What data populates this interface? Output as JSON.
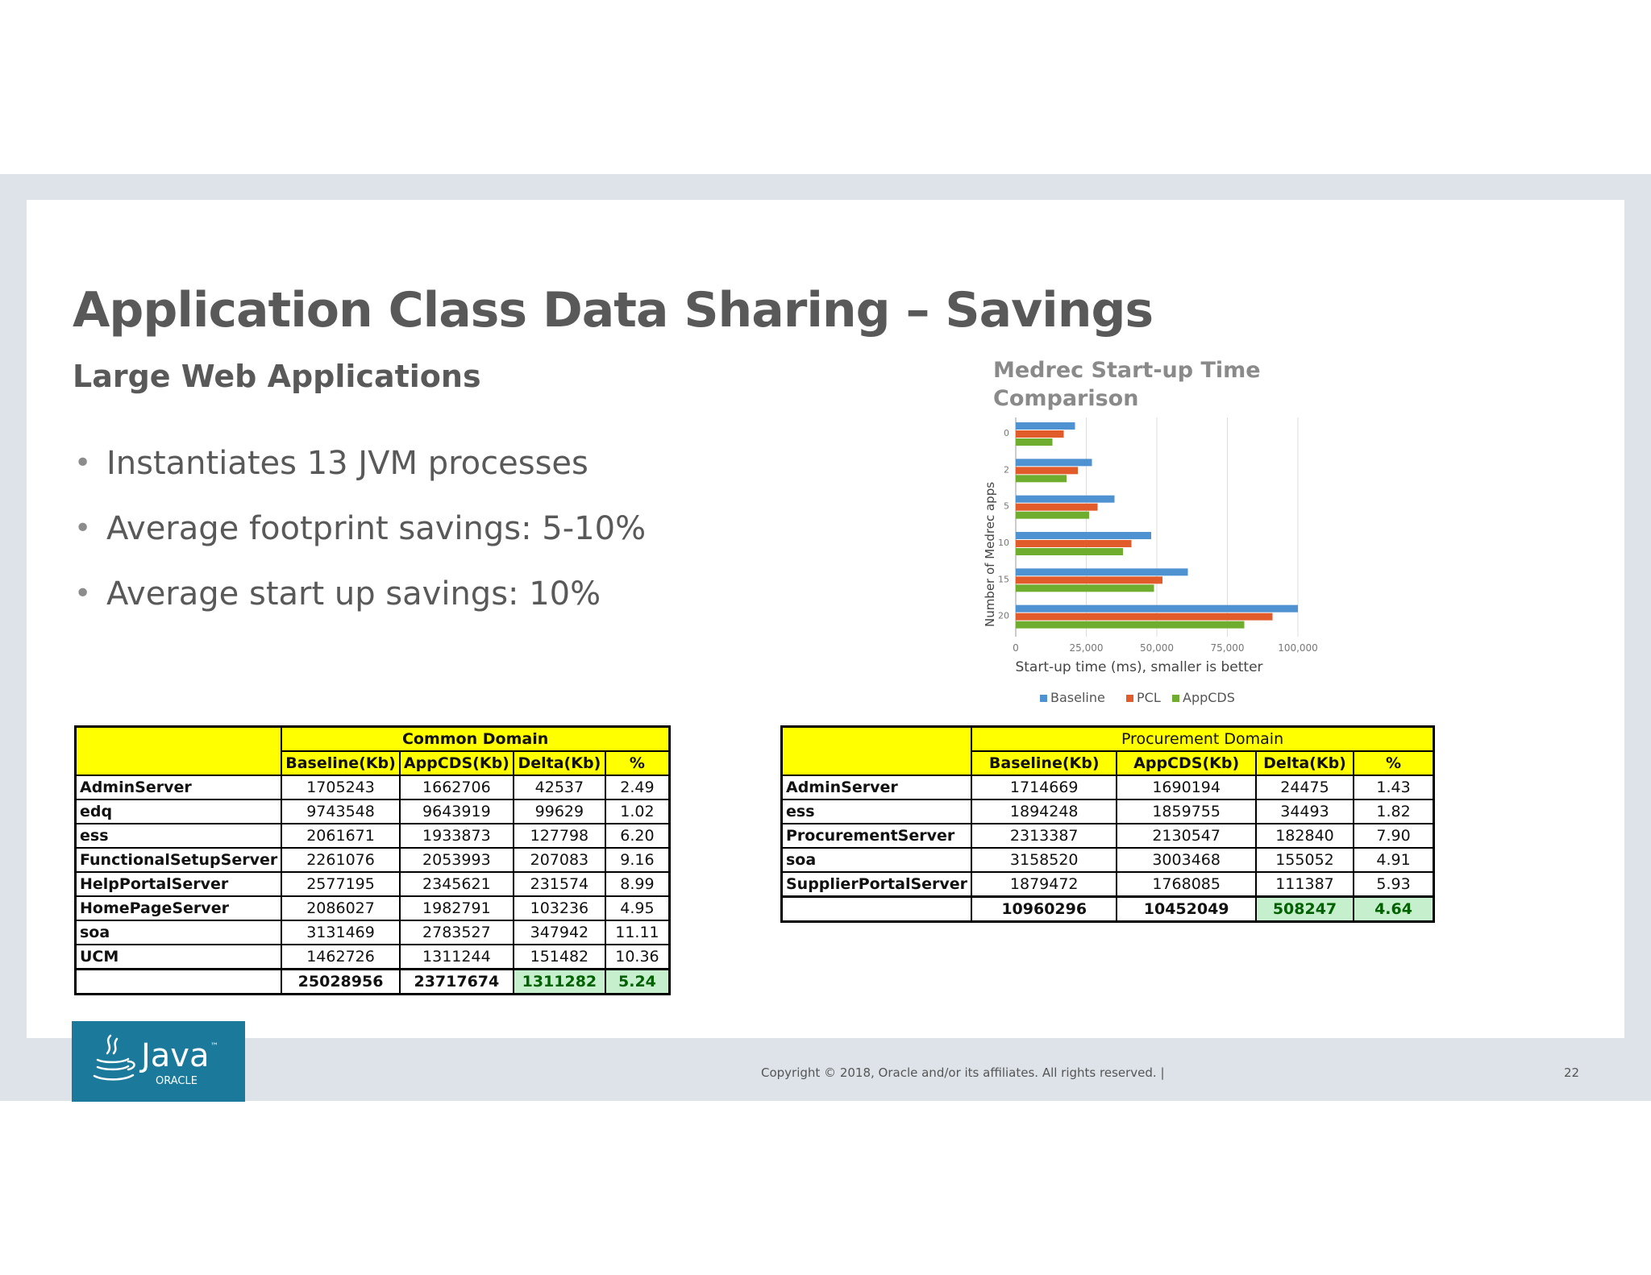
{
  "slide": {
    "title": "Application Class Data Sharing – Savings",
    "subtitle": "Large Web Applications",
    "bullets": [
      "Instantiates 13 JVM processes",
      "Average footprint savings: 5-10%",
      "Average start up savings: 10%"
    ]
  },
  "chart_data": {
    "type": "bar",
    "orientation": "horizontal",
    "title": "Medrec Start-up Time Comparison",
    "xlabel": "Start-up time (ms), smaller is better",
    "ylabel": "Number of Medrec apps",
    "categories": [
      "0",
      "2",
      "5",
      "10",
      "15",
      "20"
    ],
    "xlim": [
      0,
      100000
    ],
    "xticks": [
      "0",
      "25,000",
      "50,000",
      "75,000",
      "100,000"
    ],
    "grid": true,
    "legend": "bottom",
    "series": [
      {
        "name": "Baseline",
        "color": "#4f92d1",
        "values": [
          21000,
          27000,
          35000,
          48000,
          61000,
          100000
        ]
      },
      {
        "name": "PCL",
        "color": "#e15b2b",
        "values": [
          17000,
          22000,
          29000,
          41000,
          52000,
          91000
        ]
      },
      {
        "name": "AppCDS",
        "color": "#6fad2f",
        "values": [
          13000,
          18000,
          26000,
          38000,
          49000,
          81000
        ]
      }
    ]
  },
  "tables": {
    "common": {
      "domain": "Common Domain",
      "headers": [
        "Baseline(Kb)",
        "AppCDS(Kb)",
        "Delta(Kb)",
        "%"
      ],
      "rows": [
        [
          "AdminServer",
          "1705243",
          "1662706",
          "42537",
          "2.49"
        ],
        [
          "edq",
          "9743548",
          "9643919",
          "99629",
          "1.02"
        ],
        [
          "ess",
          "2061671",
          "1933873",
          "127798",
          "6.20"
        ],
        [
          "FunctionalSetupServer",
          "2261076",
          "2053993",
          "207083",
          "9.16"
        ],
        [
          "HelpPortalServer",
          "2577195",
          "2345621",
          "231574",
          "8.99"
        ],
        [
          "HomePageServer",
          "2086027",
          "1982791",
          "103236",
          "4.95"
        ],
        [
          "soa",
          "3131469",
          "2783527",
          "347942",
          "11.11"
        ],
        [
          "UCM",
          "1462726",
          "1311244",
          "151482",
          "10.36"
        ]
      ],
      "total": [
        "",
        "25028956",
        "23717674",
        "1311282",
        "5.24"
      ]
    },
    "procurement": {
      "domain": "Procurement Domain",
      "headers": [
        "Baseline(Kb)",
        "AppCDS(Kb)",
        "Delta(Kb)",
        "%"
      ],
      "rows": [
        [
          "AdminServer",
          "1714669",
          "1690194",
          "24475",
          "1.43"
        ],
        [
          "ess",
          "1894248",
          "1859755",
          "34493",
          "1.82"
        ],
        [
          "ProcurementServer",
          "2313387",
          "2130547",
          "182840",
          "7.90"
        ],
        [
          "soa",
          "3158520",
          "3003468",
          "155052",
          "4.91"
        ],
        [
          "SupplierPortalServer",
          "1879472",
          "1768085",
          "111387",
          "5.93"
        ]
      ],
      "total": [
        "",
        "10960296",
        "10452049",
        "508247",
        "4.64"
      ]
    }
  },
  "footer": {
    "logo_text": "Java",
    "logo_tm": "™",
    "logo_sub": "ORACLE",
    "copyright": "Copyright © 2018, Oracle and/or its affiliates. All rights reserved.  |",
    "page_number": "22"
  }
}
